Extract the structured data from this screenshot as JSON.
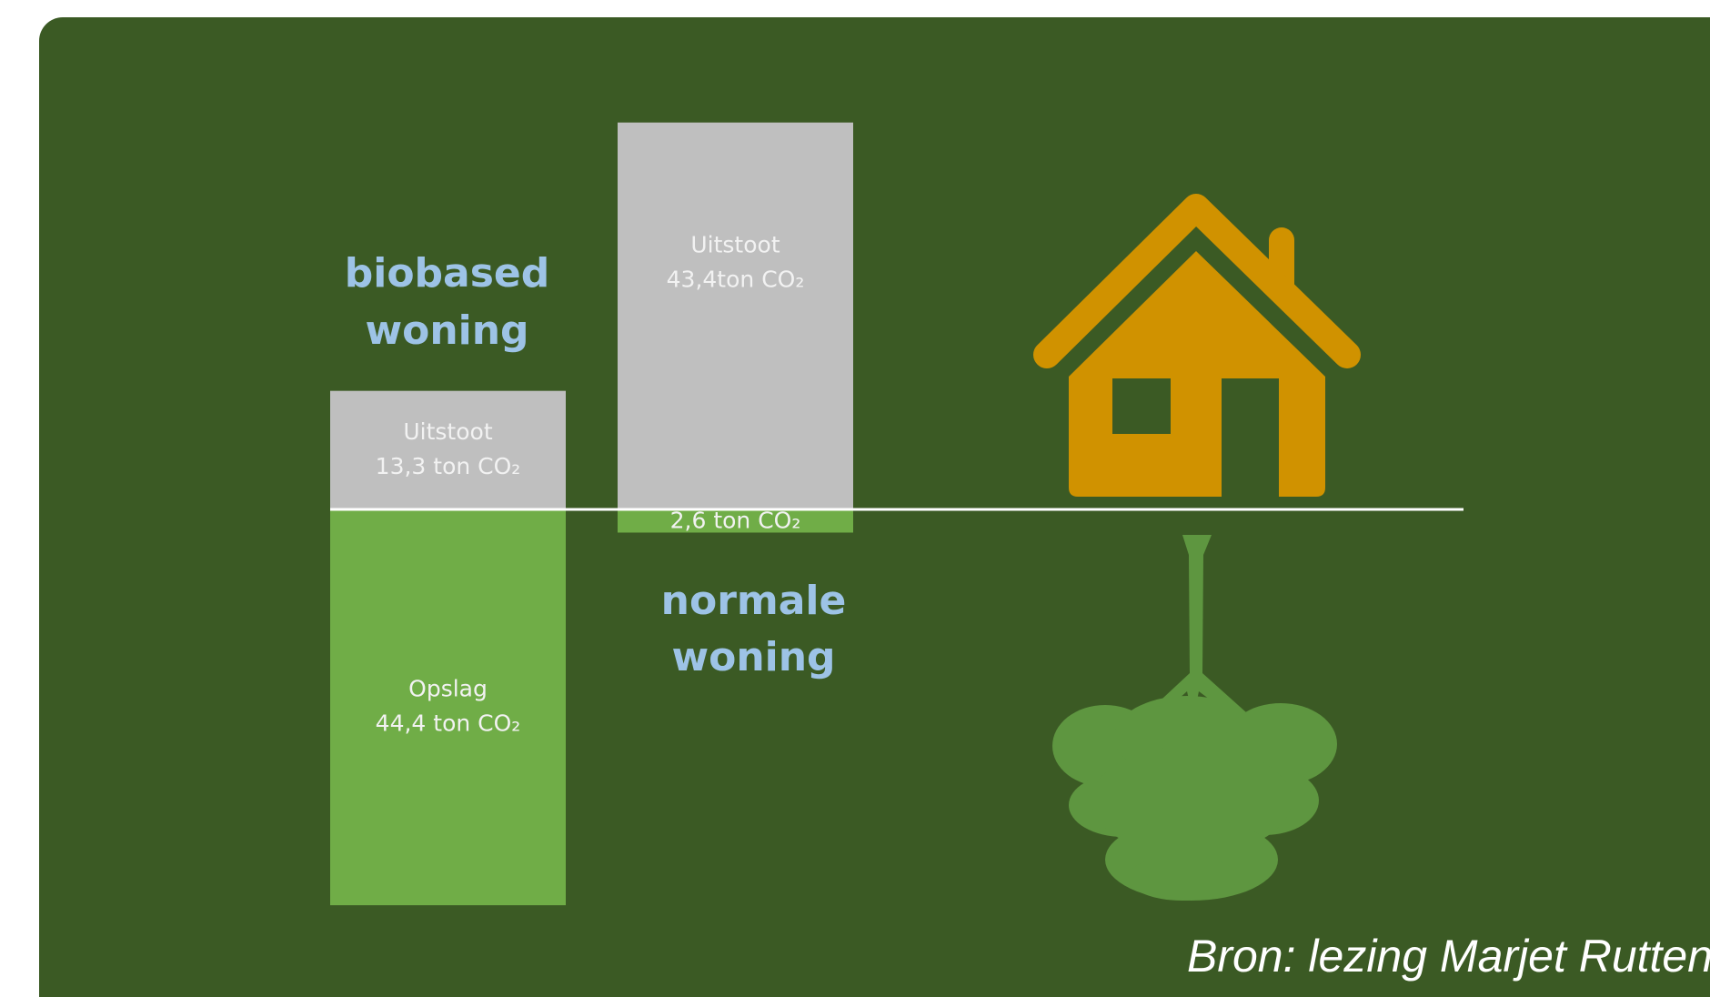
{
  "chart_data": {
    "type": "diverging-bar",
    "categories": [
      "biobased woning",
      "normale woning"
    ],
    "series": [
      {
        "name": "Uitstoot",
        "color": "#bfbfbf",
        "direction": "up",
        "values": [
          13.3,
          43.4
        ],
        "value_labels": [
          "13,3 ton CO₂",
          "43,4ton CO₂"
        ]
      },
      {
        "name": "Opslag",
        "color": "#70ad47",
        "direction": "down",
        "values": [
          44.4,
          2.6
        ],
        "value_labels": [
          "44,4 ton CO₂",
          "2,6 ton CO₂"
        ]
      }
    ],
    "source": "Bron: lezing Marjet Rutten"
  }
}
